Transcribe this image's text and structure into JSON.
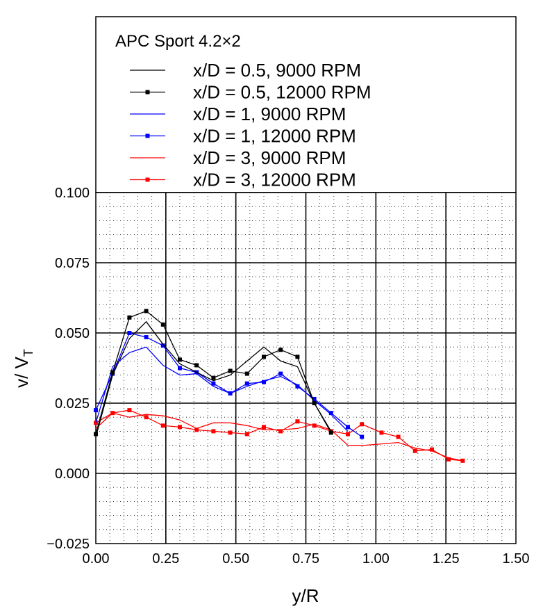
{
  "chart_data": {
    "type": "line",
    "title": "APC Sport 4.2×2",
    "xlabel": "y/R",
    "ylabel_main": "v/ V",
    "ylabel_sub": "T",
    "xlim": [
      0,
      1.5
    ],
    "ylim": [
      -0.025,
      0.1
    ],
    "x_ticks": [
      "0.00",
      "0.25",
      "0.50",
      "0.75",
      "1.00",
      "1.25",
      "1.50"
    ],
    "y_ticks": [
      "−0.025",
      "0.000",
      "0.025",
      "0.050",
      "0.075",
      "0.100"
    ],
    "grid": "major solid, minor dotted",
    "legend_placement": "top, above plot",
    "series": [
      {
        "name": "x/D = 0.5, 9000 RPM",
        "color": "#000000",
        "marker": false,
        "x": [
          0.0,
          0.06,
          0.12,
          0.18,
          0.24,
          0.3,
          0.36,
          0.42,
          0.48,
          0.54,
          0.6,
          0.66,
          0.72,
          0.78,
          0.84
        ],
        "y": [
          0.013,
          0.035,
          0.048,
          0.054,
          0.046,
          0.039,
          0.036,
          0.033,
          0.035,
          0.04,
          0.045,
          0.04,
          0.038,
          0.025,
          0.015
        ]
      },
      {
        "name": "x/D = 0.5, 12000 RPM",
        "color": "#000000",
        "marker": true,
        "x": [
          0.0,
          0.06,
          0.12,
          0.18,
          0.24,
          0.3,
          0.36,
          0.42,
          0.48,
          0.54,
          0.6,
          0.66,
          0.72,
          0.78,
          0.84
        ],
        "y": [
          0.014,
          0.036,
          0.0555,
          0.0578,
          0.053,
          0.0405,
          0.0385,
          0.034,
          0.0365,
          0.0355,
          0.0415,
          0.044,
          0.0415,
          0.025,
          0.0145
        ]
      },
      {
        "name": "x/D = 1, 9000 RPM",
        "color": "#0000ff",
        "marker": false,
        "x": [
          0.0,
          0.06,
          0.12,
          0.18,
          0.24,
          0.3,
          0.36,
          0.42,
          0.48,
          0.54,
          0.6,
          0.66,
          0.72,
          0.78,
          0.84,
          0.9
        ],
        "y": [
          0.018,
          0.038,
          0.043,
          0.045,
          0.0385,
          0.035,
          0.0355,
          0.031,
          0.0285,
          0.031,
          0.033,
          0.0345,
          0.0315,
          0.026,
          0.021,
          0.015
        ]
      },
      {
        "name": "x/D = 1, 12000 RPM",
        "color": "#0000ff",
        "marker": true,
        "x": [
          0.0,
          0.06,
          0.12,
          0.18,
          0.24,
          0.3,
          0.36,
          0.42,
          0.48,
          0.54,
          0.6,
          0.66,
          0.72,
          0.78,
          0.84,
          0.9,
          0.95
        ],
        "y": [
          0.0225,
          0.0355,
          0.05,
          0.0485,
          0.0455,
          0.0375,
          0.036,
          0.032,
          0.0285,
          0.032,
          0.0325,
          0.0355,
          0.031,
          0.0265,
          0.0215,
          0.0165,
          0.013
        ]
      },
      {
        "name": "x/D = 3, 9000 RPM",
        "color": "#ff0000",
        "marker": false,
        "x": [
          0.0,
          0.06,
          0.12,
          0.18,
          0.24,
          0.3,
          0.36,
          0.42,
          0.48,
          0.54,
          0.6,
          0.66,
          0.72,
          0.78,
          0.84,
          0.9,
          0.96,
          1.02,
          1.08,
          1.14,
          1.2,
          1.26,
          1.31
        ],
        "y": [
          0.016,
          0.0215,
          0.02,
          0.021,
          0.0205,
          0.019,
          0.016,
          0.018,
          0.018,
          0.017,
          0.0155,
          0.0155,
          0.016,
          0.0175,
          0.0155,
          0.01,
          0.01,
          0.0105,
          0.011,
          0.009,
          0.008,
          0.0055,
          0.0045
        ]
      },
      {
        "name": "x/D = 3, 12000 RPM",
        "color": "#ff0000",
        "marker": true,
        "x": [
          0.0,
          0.06,
          0.12,
          0.18,
          0.24,
          0.3,
          0.36,
          0.42,
          0.48,
          0.54,
          0.6,
          0.66,
          0.72,
          0.78,
          0.84,
          0.9,
          0.95,
          1.02,
          1.08,
          1.14,
          1.2,
          1.26,
          1.31
        ],
        "y": [
          0.018,
          0.0215,
          0.0225,
          0.02,
          0.017,
          0.0165,
          0.0155,
          0.015,
          0.0145,
          0.014,
          0.0165,
          0.015,
          0.0185,
          0.017,
          0.015,
          0.014,
          0.0175,
          0.0145,
          0.013,
          0.008,
          0.0085,
          0.005,
          0.0045
        ]
      }
    ]
  }
}
